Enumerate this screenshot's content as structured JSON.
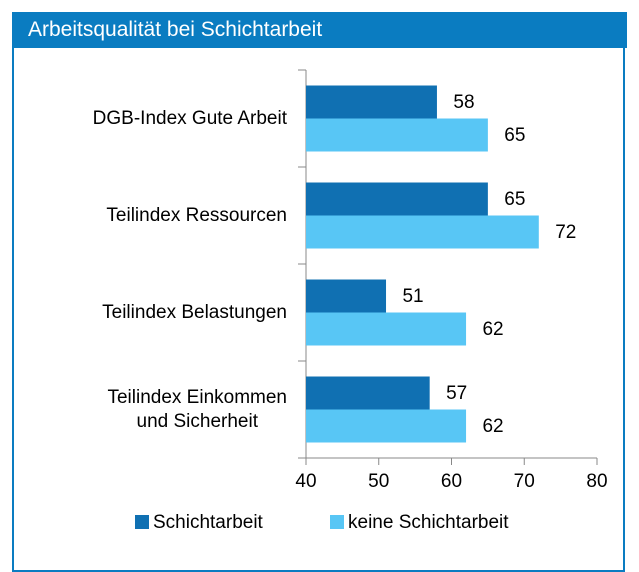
{
  "title": "Arbeitsqualität bei Schichtarbeit",
  "chart_data": {
    "type": "barh",
    "categories": [
      "DGB-Index Gute Arbeit",
      "Teilindex Ressourcen",
      "Teilindex Belastungen",
      "Teilindex Einkommen\nund Sicherheit"
    ],
    "series": [
      {
        "name": "Schichtarbeit",
        "color": "#1070b2",
        "values": [
          58,
          65,
          51,
          57
        ]
      },
      {
        "name": "keine Schichtarbeit",
        "color": "#58c6f5",
        "values": [
          65,
          72,
          62,
          62
        ]
      }
    ],
    "xlim": [
      40,
      80
    ],
    "xticks": [
      40,
      50,
      60,
      70,
      80
    ],
    "legend": "bottom"
  }
}
